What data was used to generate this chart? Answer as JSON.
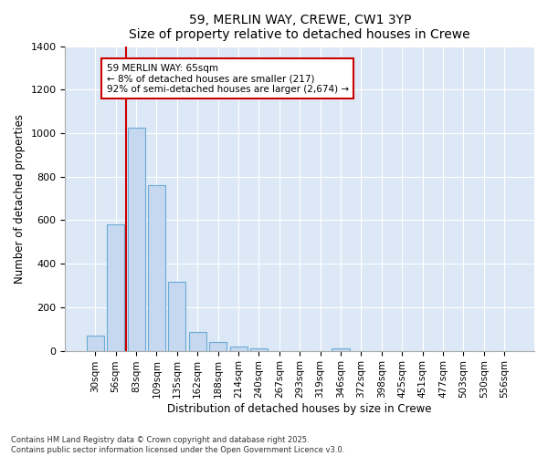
{
  "title": "59, MERLIN WAY, CREWE, CW1 3YP",
  "subtitle": "Size of property relative to detached houses in Crewe",
  "xlabel": "Distribution of detached houses by size in Crewe",
  "ylabel": "Number of detached properties",
  "categories": [
    "30sqm",
    "56sqm",
    "83sqm",
    "109sqm",
    "135sqm",
    "162sqm",
    "188sqm",
    "214sqm",
    "240sqm",
    "267sqm",
    "293sqm",
    "319sqm",
    "346sqm",
    "372sqm",
    "398sqm",
    "425sqm",
    "451sqm",
    "477sqm",
    "503sqm",
    "530sqm",
    "556sqm"
  ],
  "values": [
    70,
    580,
    1025,
    760,
    315,
    88,
    40,
    20,
    12,
    0,
    0,
    0,
    10,
    0,
    0,
    0,
    0,
    0,
    0,
    0,
    0
  ],
  "bar_color": "#c5d8f0",
  "bar_edge_color": "#6aaad4",
  "highlight_bar_index": 1,
  "highlight_color": "#cc0000",
  "annotation_text": "59 MERLIN WAY: 65sqm\n← 8% of detached houses are smaller (217)\n92% of semi-detached houses are larger (2,674) →",
  "annotation_box_color": "#ffffff",
  "annotation_box_edge_color": "#cc0000",
  "bg_color": "#ffffff",
  "plot_bg_color": "#dce8f5",
  "grid_color": "#ffffff",
  "ylim": [
    0,
    1400
  ],
  "yticks": [
    0,
    200,
    400,
    600,
    800,
    1000,
    1200,
    1400
  ],
  "footer_line1": "Contains HM Land Registry data © Crown copyright and database right 2025.",
  "footer_line2": "Contains public sector information licensed under the Open Government Licence v3.0."
}
